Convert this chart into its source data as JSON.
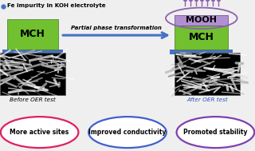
{
  "title_text": "Fe impurity in KOH electrolyte",
  "title_dot_color": "#4472C4",
  "arrow_text": "Partial phase transformation",
  "mch_color": "#70C030",
  "mch_base_color": "#4472C4",
  "mooh_color": "#9060B0",
  "mooh_bg_color": "#B090D0",
  "mooh_label": "MOOH",
  "mch_label": "MCH",
  "before_label": "Before OER test",
  "after_label": "After OER test",
  "after_label_color": "#3050C0",
  "ellipse1_text": "More active sites",
  "ellipse1_color": "#E02060",
  "ellipse2_text": "Improved conductivity",
  "ellipse2_color": "#4060D0",
  "ellipse3_text": "Promoted stability",
  "ellipse3_color": "#8040B0",
  "bg_color": "#EFEFEF",
  "fig_w": 3.2,
  "fig_h": 1.89,
  "dpi": 100
}
